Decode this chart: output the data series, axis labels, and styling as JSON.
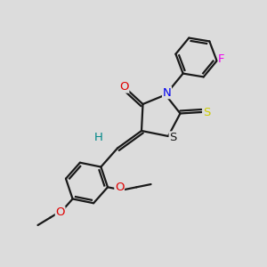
{
  "bg_color": "#dcdcdc",
  "bond_color": "#1a1a1a",
  "bond_width": 1.6,
  "atom_colors": {
    "O": "#e00000",
    "N": "#0000ee",
    "S_thioxo": "#cccc00",
    "S_ring": "#1a1a1a",
    "F": "#ee00ee",
    "H": "#008888",
    "C": "#1a1a1a"
  },
  "font_size": 9.5
}
